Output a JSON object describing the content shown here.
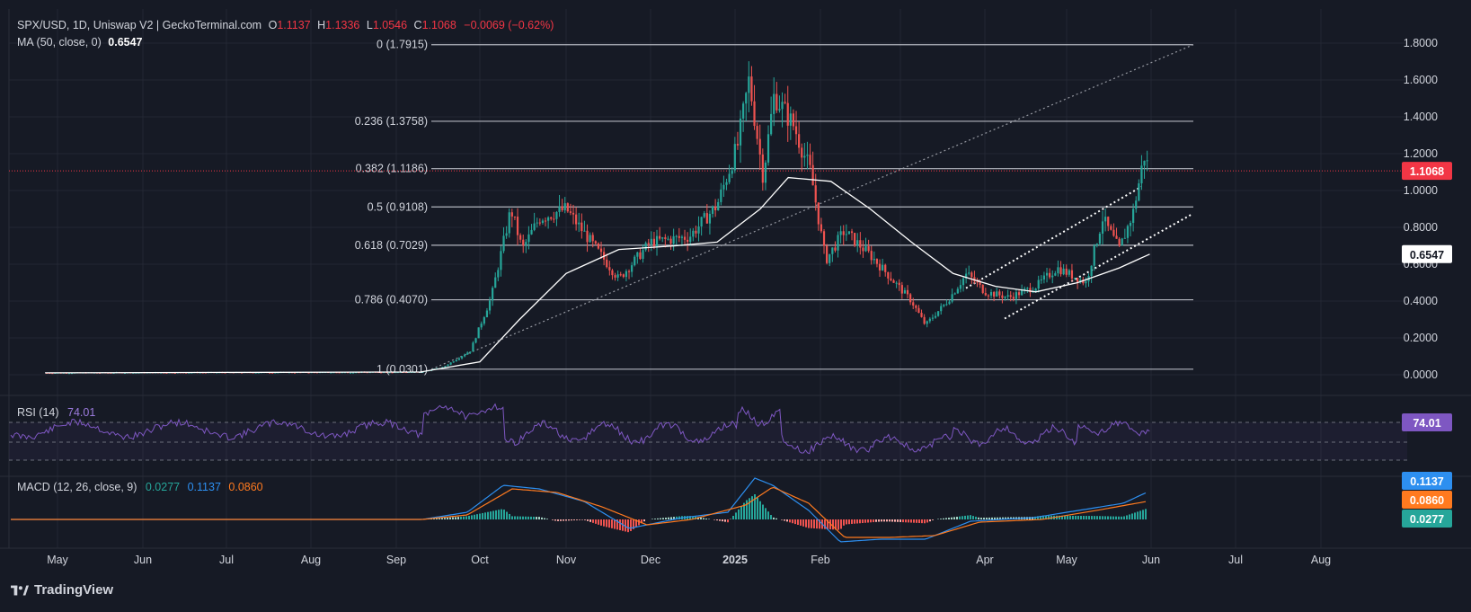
{
  "header": {
    "symbol": "SPX/USD, 1D, Uniswap V2 | GeckoTerminal.com",
    "o_label": "O",
    "o_value": "1.1137",
    "h_label": "H",
    "h_value": "1.1336",
    "l_label": "L",
    "l_value": "1.0546",
    "c_label": "C",
    "c_value": "1.1068",
    "change": "−0.0069 (−0.62%)",
    "ma_label": "MA (50, close, 0)",
    "ma_value": "0.6547"
  },
  "rsi": {
    "label": "RSI (14)",
    "value": "74.01"
  },
  "macd": {
    "label": "MACD (12, 26, close, 9)",
    "hist": "0.0277",
    "macd": "0.1137",
    "signal": "0.0860"
  },
  "brand": {
    "name": "TradingView"
  },
  "colors": {
    "bg": "#161a25",
    "up": "#26a69a",
    "down": "#ef5350",
    "rsi": "#7e57c2",
    "macd": "#2d8ff0",
    "signal": "#ff7a1f",
    "price_tag": "#f23645"
  },
  "chart_data": {
    "type": "line",
    "title": "SPX/USD, 1D, Uniswap V2 | GeckoTerminal.com",
    "x_axis_ticks": [
      "May",
      "Jun",
      "Jul",
      "Aug",
      "Sep",
      "Oct",
      "Nov",
      "Dec",
      "2025",
      "Feb",
      "Apr",
      "May",
      "Jun",
      "Jul",
      "Aug"
    ],
    "y_axis_ticks": [
      "0.0000",
      "0.2000",
      "0.4000",
      "0.6000",
      "0.8000",
      "1.0000",
      "1.2000",
      "1.4000",
      "1.6000",
      "1.8000"
    ],
    "ylim": [
      -0.02,
      1.85
    ],
    "last_price": "1.1068",
    "ma_price": "0.6547",
    "fib_levels": [
      {
        "label": "0 (1.7915)",
        "value": 1.7915
      },
      {
        "label": "0.236 (1.3758)",
        "value": 1.3758
      },
      {
        "label": "0.382 (1.1186)",
        "value": 1.1186
      },
      {
        "label": "0.5 (0.9108)",
        "value": 0.9108
      },
      {
        "label": "0.618 (0.7029)",
        "value": 0.7029
      },
      {
        "label": "0.786 (0.4070)",
        "value": 0.407
      },
      {
        "label": "1 (0.0301)",
        "value": 0.0301
      }
    ],
    "price_series": {
      "name": "SPX/USD close (approx)",
      "points": [
        [
          "Apr 27",
          0.01
        ],
        [
          "Jun 15",
          0.012
        ],
        [
          "Aug 15",
          0.013
        ],
        [
          "Sep 10",
          0.015
        ],
        [
          "Sep 18",
          0.04
        ],
        [
          "Sep 28",
          0.13
        ],
        [
          "Oct 5",
          0.42
        ],
        [
          "Oct 12",
          0.9
        ],
        [
          "Oct 16",
          0.68
        ],
        [
          "Oct 22",
          0.85
        ],
        [
          "Nov 1",
          0.9
        ],
        [
          "Nov 10",
          0.72
        ],
        [
          "Nov 20",
          0.52
        ],
        [
          "Dec 1",
          0.72
        ],
        [
          "Dec 15",
          0.75
        ],
        [
          "Dec 25",
          0.92
        ],
        [
          "Jan 2",
          1.25
        ],
        [
          "Jan 6",
          1.6
        ],
        [
          "Jan 11",
          1.08
        ],
        [
          "Jan 15",
          1.52
        ],
        [
          "Jan 22",
          1.35
        ],
        [
          "Jan 28",
          1.1
        ],
        [
          "Feb 3",
          0.62
        ],
        [
          "Feb 10",
          0.78
        ],
        [
          "Feb 20",
          0.65
        ],
        [
          "Mar 5",
          0.4
        ],
        [
          "Mar 10",
          0.27
        ],
        [
          "Mar 18",
          0.4
        ],
        [
          "Mar 25",
          0.55
        ],
        [
          "Apr 1",
          0.45
        ],
        [
          "Apr 10",
          0.42
        ],
        [
          "Apr 20",
          0.48
        ],
        [
          "Apr 28",
          0.58
        ],
        [
          "May 8",
          0.5
        ],
        [
          "May 14",
          0.85
        ],
        [
          "May 20",
          0.68
        ],
        [
          "May 25",
          0.88
        ],
        [
          "May 29",
          1.19
        ],
        [
          "May 31",
          1.1068
        ]
      ]
    },
    "ma_series": {
      "name": "MA (50, close, 0)",
      "points": [
        [
          "Apr 27",
          0.01
        ],
        [
          "Sep 10",
          0.015
        ],
        [
          "Oct 1",
          0.07
        ],
        [
          "Oct 15",
          0.3
        ],
        [
          "Nov 1",
          0.55
        ],
        [
          "Nov 20",
          0.68
        ],
        [
          "Dec 10",
          0.7
        ],
        [
          "Dec 25",
          0.72
        ],
        [
          "Jan 10",
          0.9
        ],
        [
          "Jan 20",
          1.07
        ],
        [
          "Feb 5",
          1.05
        ],
        [
          "Feb 20",
          0.9
        ],
        [
          "Mar 5",
          0.72
        ],
        [
          "Mar 20",
          0.55
        ],
        [
          "Apr 5",
          0.48
        ],
        [
          "Apr 20",
          0.45
        ],
        [
          "May 5",
          0.5
        ],
        [
          "May 20",
          0.58
        ],
        [
          "May 31",
          0.6547
        ]
      ]
    }
  }
}
